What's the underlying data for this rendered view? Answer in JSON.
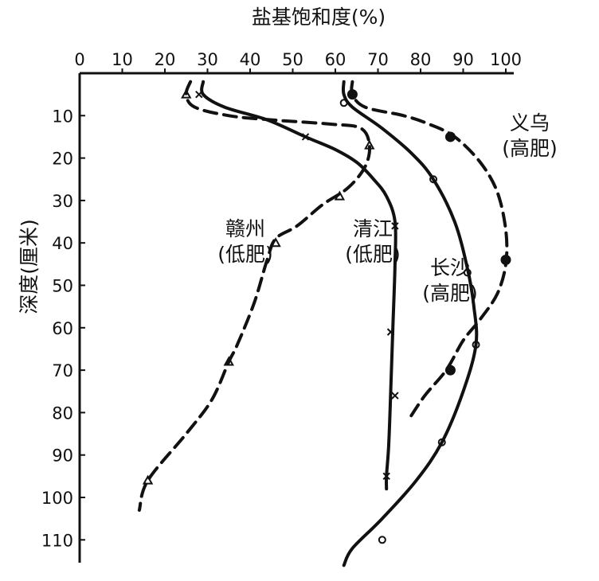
{
  "chart_data": {
    "type": "line",
    "title": "盐基饱和度(%)",
    "xlabel": "盐基饱和度(%)",
    "ylabel": "深度(厘米)",
    "xlim": [
      0,
      100
    ],
    "ylim": [
      0,
      115
    ],
    "x_ticks": [
      "0",
      "10",
      "20",
      "30",
      "40",
      "50",
      "60",
      "70",
      "80",
      "90",
      "100"
    ],
    "y_ticks": [
      "10",
      "20",
      "30",
      "40",
      "50",
      "60",
      "70",
      "80",
      "90",
      "100",
      "110"
    ],
    "x_axis_position": "top",
    "y_axis_inverted": true,
    "grid": false,
    "legend": "inline labels",
    "series": [
      {
        "name": "赣州(低肥)",
        "label_lines": [
          "赣州",
          "(低肥)"
        ],
        "style": "dashed",
        "marker": "triangle-open",
        "points": [
          [
            26,
            2
          ],
          [
            25,
            5
          ],
          [
            27,
            8
          ],
          [
            35,
            10
          ],
          [
            45,
            11
          ],
          [
            59,
            12
          ],
          [
            66,
            13
          ],
          [
            68,
            17
          ],
          [
            67,
            22
          ],
          [
            63,
            27
          ],
          [
            57,
            31
          ],
          [
            51,
            36
          ],
          [
            46,
            39
          ],
          [
            44,
            44
          ],
          [
            41,
            54
          ],
          [
            37,
            64
          ],
          [
            35,
            68
          ],
          [
            31,
            77
          ],
          [
            25,
            85
          ],
          [
            16,
            96
          ],
          [
            14,
            103
          ]
        ],
        "marked_points": [
          [
            25,
            5
          ],
          [
            68,
            17
          ],
          [
            61,
            29
          ],
          [
            46,
            40
          ],
          [
            35,
            68
          ],
          [
            16,
            96
          ]
        ]
      },
      {
        "name": "清江(低肥)",
        "label_lines": [
          "清江",
          "(低肥)"
        ],
        "style": "solid",
        "marker": "x",
        "points": [
          [
            29,
            2
          ],
          [
            29,
            5
          ],
          [
            34,
            8
          ],
          [
            44,
            11
          ],
          [
            53,
            15
          ],
          [
            60,
            18
          ],
          [
            65,
            21
          ],
          [
            69,
            25
          ],
          [
            72,
            29
          ],
          [
            74,
            35
          ],
          [
            74,
            45
          ],
          [
            73.5,
            60
          ],
          [
            73,
            75
          ],
          [
            72.5,
            88
          ],
          [
            72,
            95
          ],
          [
            72,
            98
          ]
        ],
        "marked_points": [
          [
            28,
            5
          ],
          [
            53,
            15
          ],
          [
            74,
            36
          ],
          [
            73,
            61
          ],
          [
            74,
            76
          ],
          [
            72,
            95
          ]
        ]
      },
      {
        "name": "长沙(高肥)",
        "label_lines": [
          "长沙",
          "(高肥)"
        ],
        "style": "solid",
        "marker": "circle-open",
        "points": [
          [
            62,
            2
          ],
          [
            62,
            5
          ],
          [
            64,
            8
          ],
          [
            71,
            13
          ],
          [
            78,
            19
          ],
          [
            83,
            25
          ],
          [
            88,
            35
          ],
          [
            91,
            46
          ],
          [
            92.5,
            55
          ],
          [
            93,
            64
          ],
          [
            90,
            75
          ],
          [
            85,
            87
          ],
          [
            79,
            96
          ],
          [
            71,
            105
          ],
          [
            64,
            112
          ],
          [
            62,
            116
          ]
        ],
        "marked_points": [
          [
            62,
            7
          ],
          [
            83,
            25
          ],
          [
            91,
            47
          ],
          [
            93,
            64
          ],
          [
            85,
            87
          ],
          [
            71,
            110
          ]
        ]
      },
      {
        "name": "义乌(高肥)",
        "label_lines": [
          "义乌",
          "(高肥)"
        ],
        "style": "dashed",
        "marker": "circle-filled",
        "points": [
          [
            64,
            2
          ],
          [
            64,
            5
          ],
          [
            67,
            8
          ],
          [
            76,
            10
          ],
          [
            82,
            12
          ],
          [
            88,
            15
          ],
          [
            94,
            21
          ],
          [
            98,
            28
          ],
          [
            100,
            37
          ],
          [
            100,
            45
          ],
          [
            98,
            52
          ],
          [
            94,
            58
          ],
          [
            90,
            63
          ],
          [
            86,
            70
          ],
          [
            81,
            76
          ],
          [
            77,
            82
          ]
        ],
        "marked_points": [
          [
            64,
            5
          ],
          [
            87,
            15
          ],
          [
            100,
            44
          ],
          [
            87,
            70
          ]
        ]
      }
    ]
  }
}
